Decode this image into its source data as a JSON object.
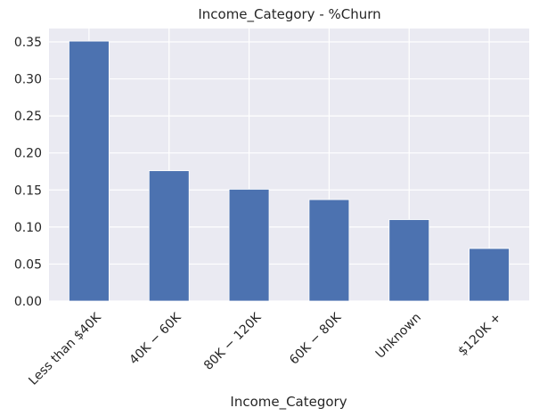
{
  "chart_data": {
    "type": "bar",
    "title": "Income_Category - %Churn",
    "xlabel": "Income_Category",
    "ylabel": "",
    "categories": [
      "Less than $40K",
      "$40K - $60K",
      "$80K - $120K",
      "$60K - $80K",
      "Unknown",
      "$120K +"
    ],
    "category_display": [
      "Less than $40K",
      "40K − 60K",
      "80K − 120K",
      "60K − 80K",
      "Unknown",
      "$120K +"
    ],
    "values": [
      0.351,
      0.176,
      0.151,
      0.137,
      0.11,
      0.071
    ],
    "ylim": [
      0,
      0.368
    ],
    "yticks": [
      0.0,
      0.05,
      0.1,
      0.15,
      0.2,
      0.25,
      0.3,
      0.35
    ],
    "ytick_labels": [
      "0.00",
      "0.05",
      "0.10",
      "0.15",
      "0.20",
      "0.25",
      "0.30",
      "0.35"
    ],
    "grid": true,
    "colors": {
      "bar": "#4c72b0",
      "plot_background": "#eaeaf2",
      "grid": "#ffffff",
      "text": "#262626"
    }
  }
}
